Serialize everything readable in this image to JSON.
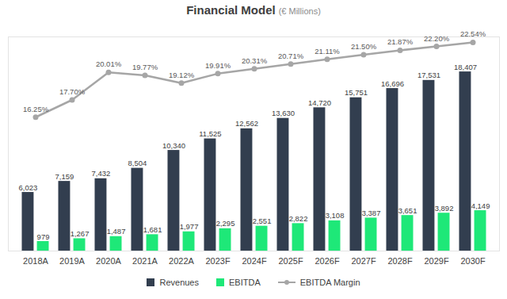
{
  "chart_data": {
    "type": "bar",
    "title": "Financial Model",
    "subtitle": "(€ Millions)",
    "categories": [
      "2018A",
      "2019A",
      "2020A",
      "2021A",
      "2022A",
      "2023F",
      "2024F",
      "2025F",
      "2026F",
      "2027F",
      "2028F",
      "2029F",
      "2030F"
    ],
    "series": [
      {
        "name": "Revenues",
        "color": "#323e4f",
        "values": [
          6023,
          7159,
          7432,
          8504,
          10340,
          11525,
          12562,
          13630,
          14720,
          15751,
          16696,
          17531,
          18407
        ],
        "value_labels": [
          "6,023",
          "7,159",
          "7,432",
          "8,504",
          "10,340",
          "11,525",
          "12,562",
          "13,630",
          "14,720",
          "15,751",
          "16,696",
          "17,531",
          "18,407"
        ]
      },
      {
        "name": "EBITDA",
        "color": "#1ee878",
        "values": [
          979,
          1267,
          1487,
          1681,
          1977,
          2295,
          2551,
          2822,
          3108,
          3387,
          3651,
          3892,
          4149
        ],
        "value_labels": [
          "979",
          "1,267",
          "1,487",
          "1,681",
          "1,977",
          "2,295",
          "2,551",
          "2,822",
          "3,108",
          "3,387",
          "3,651",
          "3,892",
          "4,149"
        ]
      },
      {
        "name": "EBITDA Margin",
        "type": "line",
        "axis": "y2",
        "color": "#a6a6a6",
        "marker": "circle",
        "values": [
          16.25,
          17.7,
          20.01,
          19.77,
          19.12,
          19.91,
          20.31,
          20.71,
          21.11,
          21.5,
          21.87,
          22.2,
          22.54
        ],
        "value_labels": [
          "16.25%",
          "17.70%",
          "20.01%",
          "19.77%",
          "19.12%",
          "19.91%",
          "20.31%",
          "20.71%",
          "21.11%",
          "21.50%",
          "21.87%",
          "22.20%",
          "22.54%"
        ]
      }
    ],
    "ylim": [
      0,
      22000
    ],
    "yticks": [],
    "y2lim": [
      5,
      23
    ],
    "y2ticks": [],
    "tick_labels": "x",
    "data_labels": true,
    "grid": false,
    "legend": "bottom"
  }
}
